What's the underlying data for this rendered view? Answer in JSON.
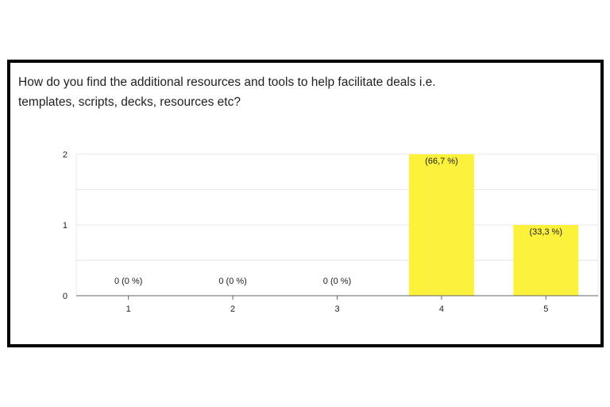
{
  "question": {
    "line1": "How do you find the additional resources and tools to help facilitate deals i.e.",
    "line2": "templates, scripts, decks, resources etc?"
  },
  "chart_data": {
    "type": "bar",
    "categories": [
      "1",
      "2",
      "3",
      "4",
      "5"
    ],
    "values": [
      0,
      0,
      0,
      2,
      1
    ],
    "data_labels": [
      "0 (0 %)",
      "0 (0 %)",
      "0 (0 %)",
      "(66,7 %)",
      "(33,3 %)"
    ],
    "y_ticks": [
      "0",
      "1",
      "2"
    ],
    "ylim": [
      0,
      2
    ],
    "grid": true,
    "bar_color": "#fdf23b",
    "gridline_color": "#e8e8e8",
    "axis_color": "#5f6368"
  }
}
